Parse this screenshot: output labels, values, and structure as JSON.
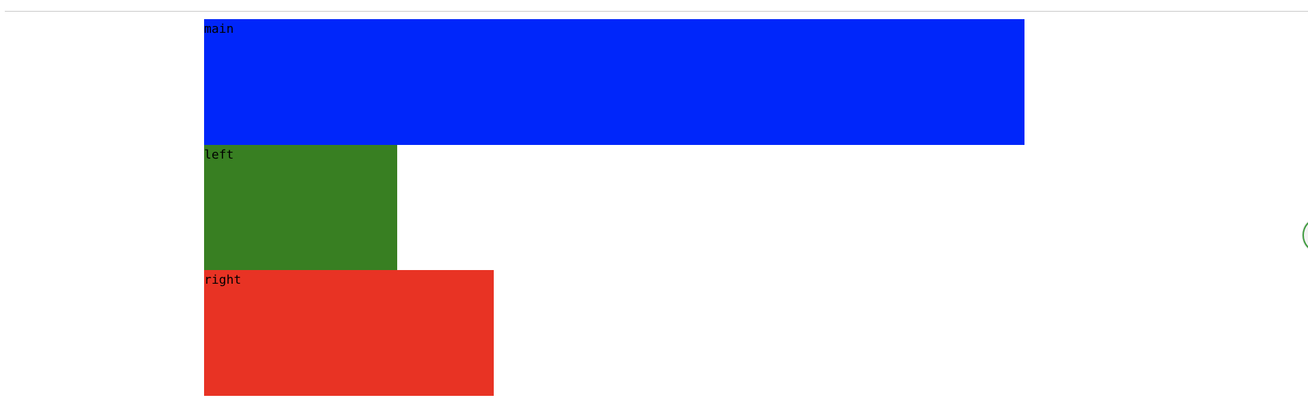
{
  "boxes": [
    {
      "id": "main",
      "label": "main",
      "color": "#0026fa"
    },
    {
      "id": "left",
      "label": "left",
      "color": "#387f22"
    },
    {
      "id": "right",
      "label": "right",
      "color": "#e83324"
    }
  ],
  "colors": {
    "background": "#ffffff",
    "rule": "#c6c6c6",
    "edge_widget_border": "#3c9c3c"
  },
  "icons": {
    "edge_widget": "floating-circle-icon"
  }
}
